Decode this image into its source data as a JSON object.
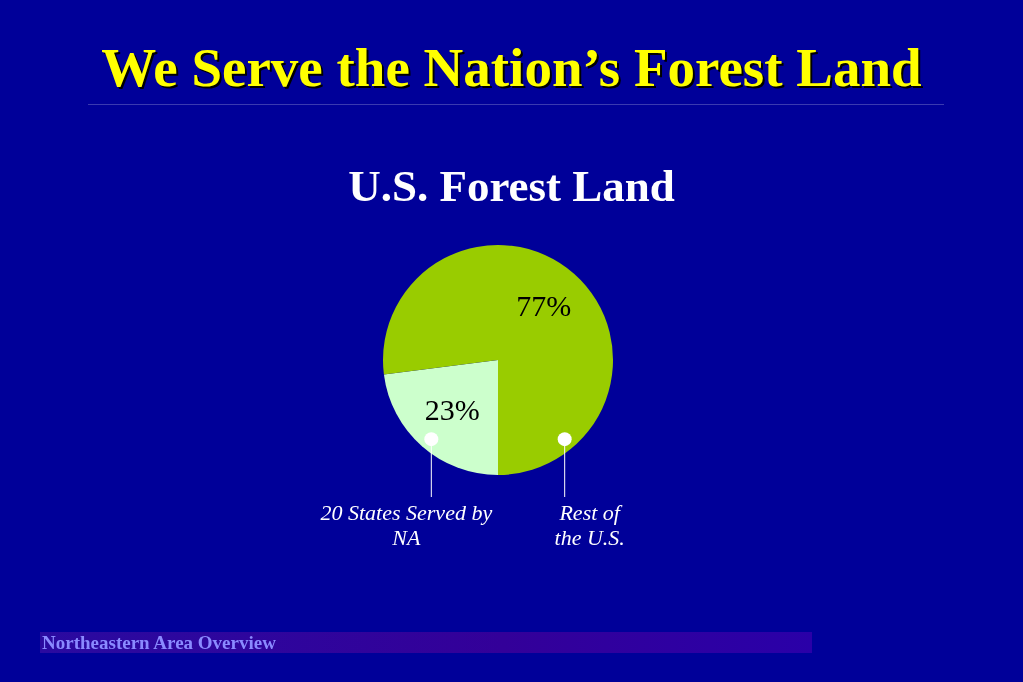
{
  "chart_data": {
    "type": "pie",
    "title": "We Serve the Nation’s Forest Land",
    "subtitle": "U.S. Forest Land",
    "categories": [
      "20 States Served by NA",
      "Rest of the U.S."
    ],
    "values": [
      23,
      77
    ],
    "colors": [
      "#ccffcc",
      "#99cc00"
    ],
    "value_labels": [
      "23%",
      "77%"
    ],
    "annotations": [
      "Northeastern Area Overview"
    ]
  }
}
